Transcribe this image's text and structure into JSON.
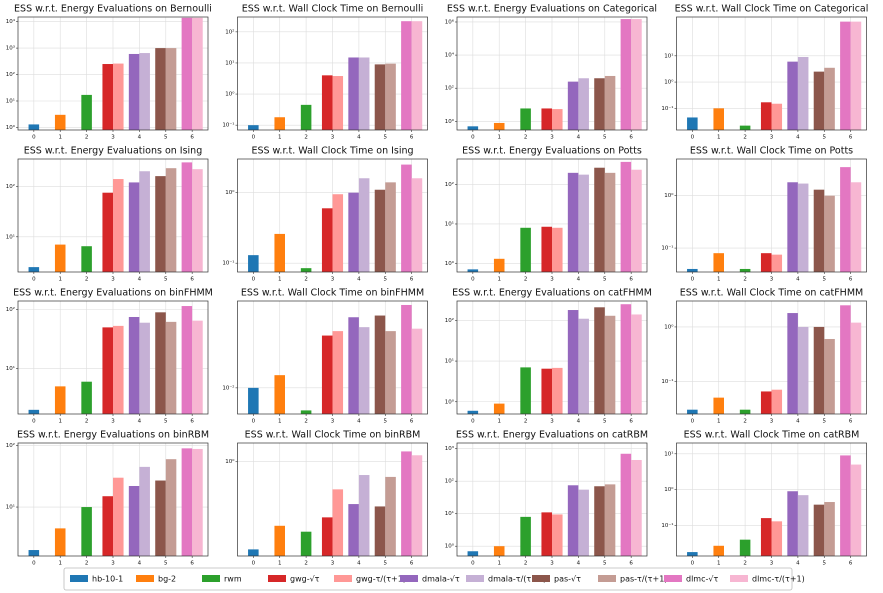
{
  "legend": {
    "entries": [
      {
        "name": "hb-10-1",
        "color": "#1f77b4"
      },
      {
        "name": "bg-2",
        "color": "#ff7f0e"
      },
      {
        "name": "rwm",
        "color": "#2ca02c"
      },
      {
        "name": "gwg-√τ",
        "color": "#d62728"
      },
      {
        "name": "gwg-τ/(τ+1)",
        "color": "#ff9896"
      },
      {
        "name": "dmala-√τ",
        "color": "#9467bd"
      },
      {
        "name": "dmala-τ/(τ+1)",
        "color": "#c5b0d5"
      },
      {
        "name": "pas-√τ",
        "color": "#8c564b"
      },
      {
        "name": "pas-τ/(τ+1)",
        "color": "#c49c94"
      },
      {
        "name": "dlmc-√τ",
        "color": "#e377c2"
      },
      {
        "name": "dlmc-τ/(τ+1)",
        "color": "#f7b6d2"
      }
    ]
  },
  "chart_data": [
    {
      "type": "bar",
      "title": "ESS w.r.t. Energy Evaluations on Bernoulli",
      "log": true,
      "grid": true,
      "xticks": [
        0,
        1,
        2,
        3,
        4,
        5,
        6
      ],
      "values": [
        1.3,
        3,
        17,
        250,
        260,
        600,
        650,
        1000,
        1000,
        14000,
        14000
      ],
      "ylim": [
        0.8,
        15000
      ],
      "yticks": [
        {
          "value": 1,
          "label": "10⁰"
        },
        {
          "value": 10,
          "label": "10¹"
        },
        {
          "value": 100,
          "label": "10²"
        },
        {
          "value": 1000,
          "label": "10³"
        },
        {
          "value": 10000,
          "label": "10⁴"
        }
      ]
    },
    {
      "type": "bar",
      "title": "ESS w.r.t. Wall Clock Time on Bernoulli",
      "log": true,
      "grid": true,
      "xticks": [
        0,
        1,
        2,
        3,
        4,
        5,
        6
      ],
      "values": [
        0.1,
        0.18,
        0.45,
        4,
        3.8,
        15,
        15,
        9,
        9.5,
        220,
        220
      ],
      "ylim": [
        0.07,
        300
      ],
      "yticks": [
        {
          "value": 0.1,
          "label": "10⁻¹"
        },
        {
          "value": 1,
          "label": "10⁰"
        },
        {
          "value": 10,
          "label": "10¹"
        },
        {
          "value": 100,
          "label": "10²"
        }
      ]
    },
    {
      "type": "bar",
      "title": "ESS w.r.t. Energy Evaluations on Categorical",
      "log": true,
      "grid": true,
      "xticks": [
        0,
        1,
        2,
        3,
        4,
        5,
        6
      ],
      "values": [
        0.5,
        0.8,
        6,
        6,
        5.5,
        250,
        400,
        400,
        550,
        1500000,
        1500000
      ],
      "ylim": [
        0.3,
        2000000
      ],
      "yticks": [
        {
          "value": 1,
          "label": "10⁰"
        },
        {
          "value": 100,
          "label": "10²"
        },
        {
          "value": 10000,
          "label": "10⁴"
        },
        {
          "value": 1000000,
          "label": "10⁶"
        }
      ]
    },
    {
      "type": "bar",
      "title": "ESS w.r.t. Wall Clock Time on Categorical",
      "log": true,
      "grid": true,
      "xticks": [
        0,
        1,
        2,
        3,
        4,
        5,
        6
      ],
      "values": [
        0.045,
        0.1,
        0.022,
        0.17,
        0.15,
        6,
        9,
        2.5,
        3.5,
        200,
        200
      ],
      "ylim": [
        0.015,
        300
      ],
      "yticks": [
        {
          "value": 0.1,
          "label": "10⁻¹"
        },
        {
          "value": 1,
          "label": "10⁰"
        },
        {
          "value": 10,
          "label": "10¹"
        }
      ]
    },
    {
      "type": "bar",
      "title": "ESS w.r.t. Energy Evaluations on Ising",
      "log": true,
      "grid": true,
      "xticks": [
        0,
        1,
        2,
        3,
        4,
        5,
        6
      ],
      "values": [
        2.5,
        7,
        6.5,
        75,
        140,
        120,
        200,
        160,
        230,
        300,
        220
      ],
      "ylim": [
        2,
        350
      ],
      "yticks": [
        {
          "value": 10,
          "label": "10¹"
        },
        {
          "value": 100,
          "label": "10²"
        }
      ]
    },
    {
      "type": "bar",
      "title": "ESS w.r.t. Wall Clock Time on Ising",
      "log": true,
      "grid": true,
      "xticks": [
        0,
        1,
        2,
        3,
        4,
        5,
        6
      ],
      "values": [
        0.13,
        0.26,
        0.085,
        0.6,
        0.95,
        1,
        1.6,
        1.1,
        1.4,
        2.5,
        1.6
      ],
      "ylim": [
        0.075,
        3
      ],
      "yticks": [
        {
          "value": 0.1,
          "label": "10⁻¹"
        },
        {
          "value": 1,
          "label": "10⁰"
        }
      ]
    },
    {
      "type": "bar",
      "title": "ESS w.r.t. Energy Evaluations on Potts",
      "log": true,
      "grid": true,
      "xticks": [
        0,
        1,
        2,
        3,
        4,
        5,
        6
      ],
      "values": [
        0.7,
        1.3,
        8,
        8.5,
        8,
        200,
        180,
        270,
        200,
        380,
        240
      ],
      "ylim": [
        0.6,
        450
      ],
      "yticks": [
        {
          "value": 1,
          "label": "10⁰"
        },
        {
          "value": 10,
          "label": "10¹"
        },
        {
          "value": 100,
          "label": "10²"
        }
      ]
    },
    {
      "type": "bar",
      "title": "ESS w.r.t. Wall Clock Time on Potts",
      "log": true,
      "grid": true,
      "xticks": [
        0,
        1,
        2,
        3,
        4,
        5,
        6
      ],
      "values": [
        0.04,
        0.08,
        0.04,
        0.08,
        0.075,
        1.8,
        1.7,
        1.3,
        1.0,
        3.5,
        1.8
      ],
      "ylim": [
        0.035,
        5
      ],
      "yticks": [
        {
          "value": 0.1,
          "label": "10⁻¹"
        },
        {
          "value": 1,
          "label": "10⁰"
        }
      ]
    },
    {
      "type": "bar",
      "title": "ESS w.r.t. Energy Evaluations on binFHMM",
      "log": true,
      "grid": true,
      "xticks": [
        0,
        1,
        2,
        3,
        4,
        5,
        6
      ],
      "values": [
        2,
        5,
        6,
        50,
        53,
        75,
        60,
        90,
        62,
        115,
        65
      ],
      "ylim": [
        1.7,
        140
      ],
      "yticks": [
        {
          "value": 10,
          "label": "10¹"
        },
        {
          "value": 100,
          "label": "10²"
        }
      ]
    },
    {
      "type": "bar",
      "title": "ESS w.r.t. Wall Clock Time on binFHMM",
      "log": true,
      "grid": true,
      "xticks": [
        0,
        1,
        2,
        3,
        4,
        5,
        6
      ],
      "values": [
        0.01,
        0.014,
        0.0055,
        0.04,
        0.045,
        0.065,
        0.05,
        0.068,
        0.045,
        0.09,
        0.048
      ],
      "ylim": [
        0.005,
        0.1
      ],
      "yticks": [
        {
          "value": 0.01,
          "label": "10⁻²"
        }
      ]
    },
    {
      "type": "bar",
      "title": "ESS w.r.t. Energy Evaluations on catFHMM",
      "log": true,
      "grid": true,
      "xticks": [
        0,
        1,
        2,
        3,
        4,
        5,
        6
      ],
      "values": [
        0.6,
        0.9,
        7,
        6.5,
        6.8,
        180,
        110,
        210,
        130,
        250,
        140
      ],
      "ylim": [
        0.5,
        300
      ],
      "yticks": [
        {
          "value": 1,
          "label": "10⁰"
        },
        {
          "value": 10,
          "label": "10¹"
        },
        {
          "value": 100,
          "label": "10²"
        }
      ]
    },
    {
      "type": "bar",
      "title": "ESS w.r.t. Wall Clock Time on catFHMM",
      "log": true,
      "grid": true,
      "xticks": [
        0,
        1,
        2,
        3,
        4,
        5,
        6
      ],
      "values": [
        0.03,
        0.05,
        0.03,
        0.065,
        0.07,
        1.8,
        1.0,
        1.0,
        0.6,
        2.5,
        1.2
      ],
      "ylim": [
        0.025,
        3
      ],
      "yticks": [
        {
          "value": 0.1,
          "label": "10⁻¹"
        },
        {
          "value": 1,
          "label": "10⁰"
        }
      ]
    },
    {
      "type": "bar",
      "title": "ESS w.r.t. Energy Evaluations on binRBM",
      "log": true,
      "grid": true,
      "xticks": [
        0,
        1,
        2,
        3,
        4,
        5,
        6
      ],
      "values": [
        2,
        4.5,
        10,
        15,
        30,
        22,
        45,
        27,
        60,
        90,
        88
      ],
      "ylim": [
        1.6,
        110
      ],
      "yticks": [
        {
          "value": 10,
          "label": "10¹"
        },
        {
          "value": 100,
          "label": "10²"
        }
      ]
    },
    {
      "type": "bar",
      "title": "ESS w.r.t. Wall Clock Time on binRBM",
      "log": true,
      "grid": true,
      "xticks": [
        0,
        1,
        2,
        3,
        4,
        5,
        6
      ],
      "values": [
        0.15,
        0.25,
        0.22,
        0.3,
        0.55,
        0.4,
        0.75,
        0.38,
        0.72,
        1.25,
        1.15
      ],
      "ylim": [
        0.13,
        1.5
      ],
      "yticks": [
        {
          "value": 1,
          "label": "10⁰"
        }
      ]
    },
    {
      "type": "bar",
      "title": "ESS w.r.t. Energy Evaluations on catRBM",
      "log": true,
      "grid": true,
      "xticks": [
        0,
        1,
        2,
        3,
        4,
        5,
        6
      ],
      "values": [
        0.7,
        1,
        8,
        11,
        9.5,
        75,
        55,
        70,
        80,
        700,
        450
      ],
      "ylim": [
        0.5,
        1500
      ],
      "yticks": [
        {
          "value": 1,
          "label": "10⁰"
        },
        {
          "value": 10,
          "label": "10¹"
        },
        {
          "value": 100,
          "label": "10²"
        },
        {
          "value": 1000,
          "label": "10³"
        }
      ]
    },
    {
      "type": "bar",
      "title": "ESS w.r.t. Wall Clock Time on catRBM",
      "log": true,
      "grid": true,
      "xticks": [
        0,
        1,
        2,
        3,
        4,
        5,
        6
      ],
      "values": [
        0.018,
        0.027,
        0.04,
        0.16,
        0.13,
        0.9,
        0.7,
        0.38,
        0.45,
        9,
        5
      ],
      "ylim": [
        0.014,
        20
      ],
      "yticks": [
        {
          "value": 0.1,
          "label": "10⁻¹"
        },
        {
          "value": 1,
          "label": "10⁰"
        },
        {
          "value": 10,
          "label": "10¹"
        }
      ]
    }
  ]
}
